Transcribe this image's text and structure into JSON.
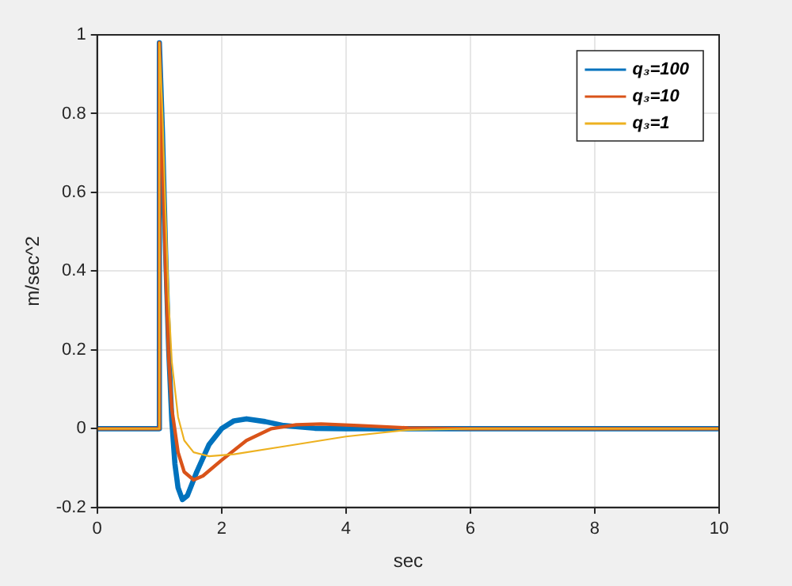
{
  "chart_data": {
    "type": "line",
    "xlabel": "sec",
    "ylabel": "m/sec^2",
    "xlim": [
      0,
      10
    ],
    "xticks": [
      0,
      2,
      4,
      6,
      8,
      10
    ],
    "ylim": [
      -0.2,
      1
    ],
    "yticks": [
      -0.2,
      0,
      0.2,
      0.4,
      0.6,
      0.8,
      1
    ],
    "grid": true,
    "legend": "top right",
    "marker": "none",
    "line_style": "solid",
    "series": [
      {
        "name": "q₃=100",
        "color": "#0072bd",
        "x": [
          0,
          1,
          1,
          1.05,
          1.1,
          1.15,
          1.2,
          1.25,
          1.3,
          1.37,
          1.45,
          1.6,
          1.8,
          2.0,
          2.2,
          2.4,
          2.7,
          3.0,
          3.5,
          4,
          10
        ],
        "values": [
          0,
          0,
          0.98,
          0.75,
          0.45,
          0.2,
          0.02,
          -0.09,
          -0.15,
          -0.18,
          -0.17,
          -0.11,
          -0.04,
          0,
          0.02,
          0.025,
          0.018,
          0.008,
          0.001,
          0,
          0
        ]
      },
      {
        "name": "q₃=10",
        "color": "#d95319",
        "x": [
          0,
          1,
          1,
          1.05,
          1.1,
          1.15,
          1.2,
          1.3,
          1.4,
          1.55,
          1.7,
          2.0,
          2.4,
          2.8,
          3.2,
          3.6,
          4.2,
          5,
          6,
          10
        ],
        "values": [
          0,
          0,
          0.98,
          0.7,
          0.4,
          0.18,
          0.05,
          -0.06,
          -0.11,
          -0.13,
          -0.12,
          -0.08,
          -0.03,
          0,
          0.01,
          0.012,
          0.008,
          0.002,
          0,
          0
        ]
      },
      {
        "name": "q₃=1",
        "color": "#edb120",
        "x": [
          0,
          1,
          1,
          1.05,
          1.1,
          1.15,
          1.2,
          1.3,
          1.4,
          1.55,
          1.8,
          2.2,
          3,
          4,
          5,
          6,
          10
        ],
        "values": [
          0,
          0,
          0.98,
          0.8,
          0.55,
          0.32,
          0.17,
          0.03,
          -0.03,
          -0.06,
          -0.07,
          -0.065,
          -0.045,
          -0.02,
          -0.003,
          0,
          0
        ]
      }
    ]
  }
}
